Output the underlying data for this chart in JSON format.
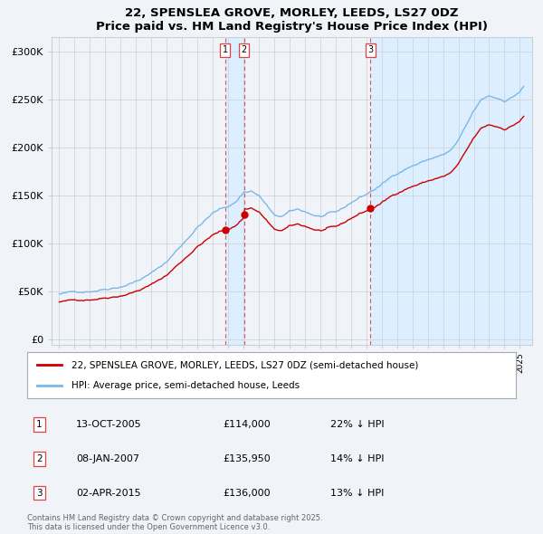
{
  "title": "22, SPENSLEA GROVE, MORLEY, LEEDS, LS27 0DZ",
  "subtitle": "Price paid vs. HM Land Registry's House Price Index (HPI)",
  "legend_line1": "22, SPENSLEA GROVE, MORLEY, LEEDS, LS27 0DZ (semi-detached house)",
  "legend_line2": "HPI: Average price, semi-detached house, Leeds",
  "footer_line1": "Contains HM Land Registry data © Crown copyright and database right 2025.",
  "footer_line2": "This data is licensed under the Open Government Licence v3.0.",
  "transactions": [
    {
      "label": "1",
      "date": "13-OCT-2005",
      "price": "£114,000",
      "pct": "22% ↓ HPI",
      "x": 2005.79
    },
    {
      "label": "2",
      "date": "08-JAN-2007",
      "price": "£135,950",
      "pct": "14% ↓ HPI",
      "x": 2007.03
    },
    {
      "label": "3",
      "date": "02-APR-2015",
      "price": "£136,000",
      "pct": "13% ↓ HPI",
      "x": 2015.25
    }
  ],
  "hpi_color": "#7ab8e8",
  "price_color": "#cc0000",
  "dot_color": "#cc0000",
  "shade_color": "#ddeeff",
  "background_color": "#f0f4f8",
  "plot_bg_color": "#f0f4f8",
  "grid_color": "#c8d0d8",
  "transaction_line_color": "#dd4444",
  "ylim_min": -5000,
  "ylim_max": 315000,
  "xlim_min": 1994.5,
  "xlim_max": 2025.8
}
